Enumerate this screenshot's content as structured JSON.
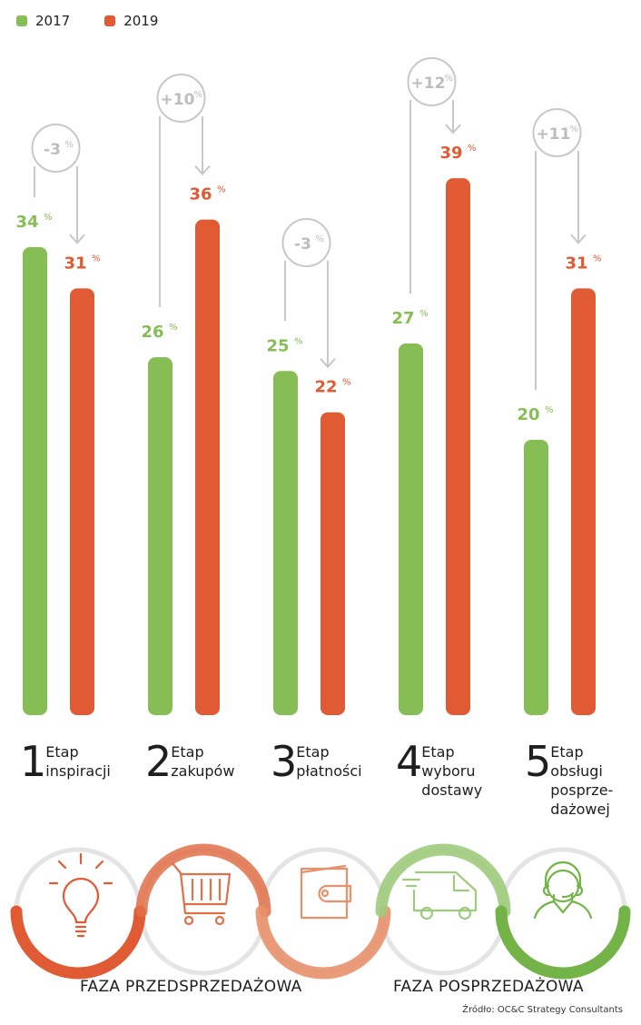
{
  "chart_data": {
    "type": "bar",
    "title": "",
    "xlabel": "",
    "ylabel": "",
    "ylim": [
      0,
      52
    ],
    "grid": false,
    "legend_position": "top-left",
    "categories": [
      "Etap inspiracji",
      "Etap zakupów",
      "Etap płatności",
      "Etap wyboru dostawy",
      "Etap obsługi posprzedażowej"
    ],
    "series": [
      {
        "name": "2017",
        "color": "#86bd55",
        "values": [
          34,
          26,
          25,
          27,
          20
        ]
      },
      {
        "name": "2019",
        "color": "#e05a33",
        "values": [
          31,
          36,
          22,
          39,
          31
        ]
      }
    ],
    "value_labels_2017": [
      "34",
      "26",
      "25",
      "27",
      "20"
    ],
    "value_labels_2019": [
      "31",
      "36",
      "22",
      "39",
      "31"
    ],
    "change_annotations": [
      "-3",
      "+10",
      "-3",
      "+12",
      "+11"
    ],
    "percent_sign": "%"
  },
  "legend": {
    "items": [
      {
        "label": "2017",
        "color": "#86bd55"
      },
      {
        "label": "2019",
        "color": "#e05a33"
      }
    ]
  },
  "stages": [
    {
      "number": "1",
      "label": "Etap\ninspiracji",
      "icon": "lightbulb-icon"
    },
    {
      "number": "2",
      "label": "Etap\nzakupów",
      "icon": "shopping-cart-icon"
    },
    {
      "number": "3",
      "label": "Etap\npłatności",
      "icon": "wallet-icon"
    },
    {
      "number": "4",
      "label": "Etap\nwyboru\ndostawy",
      "icon": "delivery-van-icon"
    },
    {
      "number": "5",
      "label": "Etap\nobsługi\nposprze-\ndażowej",
      "icon": "customer-support-icon"
    }
  ],
  "phases": {
    "pre": "FAZA PRZEDSPRZEDAŻOWA",
    "post": "FAZA POSPRZEDAŻOWA"
  },
  "colors": {
    "green": "#86bd55",
    "red": "#e05a33",
    "light_red": "#e8906a",
    "light_green": "#9fcb7c",
    "gray": "#c8c8c8",
    "ring_gray": "#e4e4e4"
  },
  "source": "Źródło: OC&C Strategy Consultants"
}
